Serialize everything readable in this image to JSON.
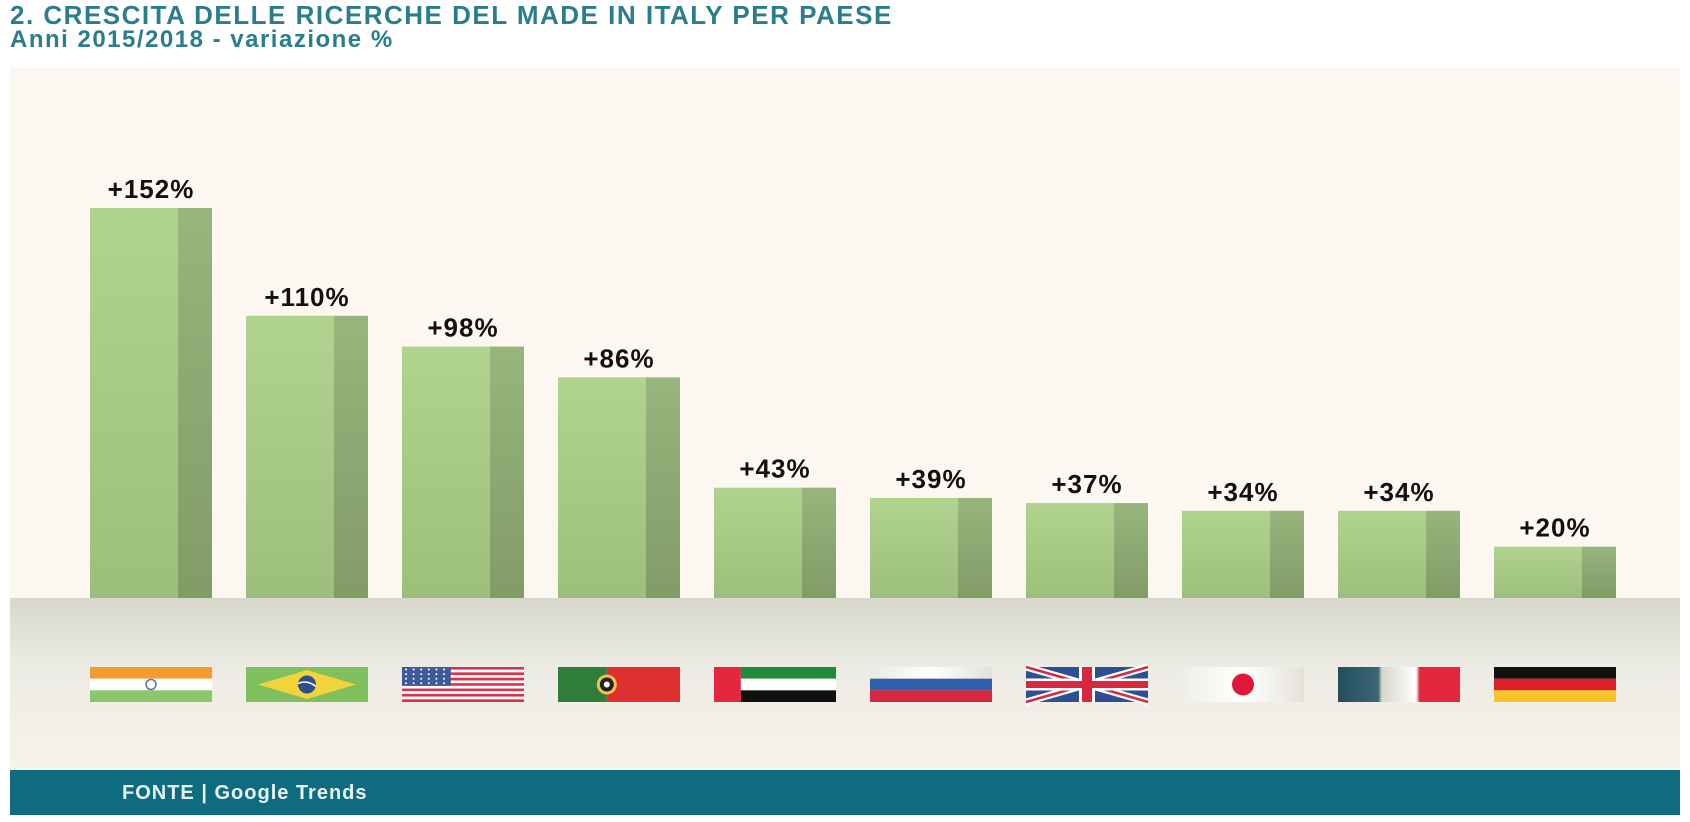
{
  "chart_data": {
    "type": "bar",
    "title": "2. CRESCITA DELLE RICERCHE DEL MADE IN ITALY PER PAESE",
    "subtitle": "Anni 2015/2018 - variazione %",
    "categories": [
      "India",
      "Brasile",
      "Stati Uniti",
      "Portogallo",
      "Emirati Arabi Uniti",
      "Russia",
      "Regno Unito",
      "Giappone",
      "Francia",
      "Germania"
    ],
    "category_icons": [
      "india-flag",
      "brazil-flag",
      "usa-flag",
      "portugal-flag",
      "uae-flag",
      "russia-flag",
      "uk-flag",
      "japan-flag",
      "france-flag",
      "germany-flag"
    ],
    "values": [
      152,
      110,
      98,
      86,
      43,
      39,
      37,
      34,
      34,
      20
    ],
    "labels": [
      "+152%",
      "+110%",
      "+98%",
      "+86%",
      "+43%",
      "+39%",
      "+37%",
      "+34%",
      "+34%",
      "+20%"
    ],
    "xlabel": "",
    "ylabel": "",
    "ylim": [
      0,
      160
    ],
    "grid": false,
    "bar_color": "#aed08f",
    "bar_shade_color": "#93b07a"
  },
  "source": "FONTE | Google Trends",
  "colors": {
    "title": "#2a7d8c",
    "panel_background": "#fdf7f2",
    "source_bar": "#0f6c80"
  }
}
